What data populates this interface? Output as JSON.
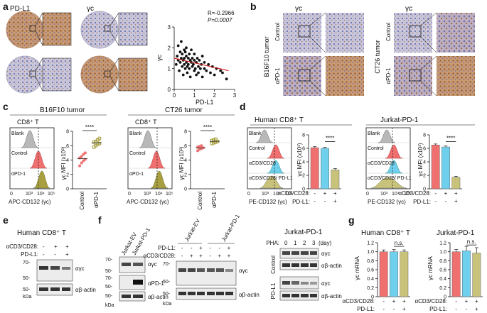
{
  "panels": {
    "a": {
      "letter": "a",
      "col_left": "PD-L1",
      "col_right": "γc",
      "scatter": {
        "stat_r": "R=-0.2966",
        "stat_p": "P=0.0007",
        "xlabel": "PD-L1",
        "ylabel": "γc",
        "xticks": [
          "0",
          "1",
          "2",
          "3"
        ],
        "yticks": [
          "0",
          "1",
          "2",
          "3"
        ]
      }
    },
    "b": {
      "letter": "b",
      "col_title": "γc",
      "group_left": "B16F10 tumor",
      "group_right": "CT26 tumor",
      "rows": [
        "Control",
        "αPD-1"
      ]
    },
    "c": {
      "letter": "c",
      "groups": [
        "B16F10 tumor",
        "CT26 tumor"
      ],
      "cell": "CD8⁺ T",
      "hist_labels": [
        "Blank",
        "Control",
        "αPD-1"
      ],
      "xaxis": "APC-CD132 (γc)",
      "xticks": [
        "0",
        "10²",
        "10³",
        "10⁴",
        "10⁵"
      ],
      "ylabel": "γc MFI (x10³)",
      "sig": "****",
      "cats": [
        "Control",
        "αPD-1"
      ],
      "yticks_left": [
        "0",
        "2",
        "4",
        "6",
        "8"
      ],
      "yticks_right": [
        "0",
        "2",
        "4",
        "6",
        "8"
      ]
    },
    "d": {
      "letter": "d",
      "groups": [
        "Human CD8⁺ T",
        "Jurkat-PD-1"
      ],
      "hist_labels": [
        "Blank",
        "Control",
        "αCD3/CD28",
        "αCD3/CD28/ PD-L1"
      ],
      "xaxis": "PE-CD132 (γc)",
      "xticks": [
        "0",
        "10³",
        "10⁴",
        "10⁵"
      ],
      "ylabel": "γc MFI (x10³)",
      "sig": "****",
      "cond_row1": "αCD3/CD28:",
      "cond_row2": "PD-L1:",
      "row1_vals": [
        "-",
        "+",
        "+"
      ],
      "row2_vals": [
        "-",
        "-",
        "+"
      ],
      "yticks": [
        "0",
        "2",
        "4",
        "6",
        "8"
      ]
    },
    "e": {
      "letter": "e",
      "title": "Human CD8⁺ T",
      "cond_row1": "αCD3/CD28:",
      "cond_row2": "PD-L1:",
      "row1_vals": [
        "-",
        "+",
        "+"
      ],
      "row2_vals": [
        "-",
        "-",
        "+"
      ],
      "bands": [
        "αγc",
        "αβ-actin"
      ],
      "mw": [
        "70-",
        "50-",
        "50-",
        "kDa"
      ]
    },
    "f": {
      "letter": "f",
      "lanes1": [
        "Jurkat-EV",
        "Jurkat-PD-1"
      ],
      "blot1": [
        "αγc",
        "αPD-1",
        "αβ-actin"
      ],
      "mw1": [
        "70-",
        "50-",
        "70-",
        "50-",
        "50-",
        "kDa"
      ],
      "lanes2": [
        "Jurkat-EV",
        "Jurkat-PD-1"
      ],
      "cond_row1": "PD-L1:",
      "cond_row2": "αCD3/CD28:",
      "row1_vals": [
        "-",
        "-",
        "+",
        "-",
        "-",
        "+"
      ],
      "row2_vals": [
        "-",
        "+",
        "+",
        "-",
        "+",
        "+"
      ],
      "blot2": [
        "αγc",
        "αβ-actin"
      ],
      "mw2": [
        "70-",
        "50-",
        "50-",
        "kDa"
      ],
      "title3": "Jurkat-PD-1",
      "pha_label": "PHA:",
      "pha_days": [
        "0",
        "1",
        "2",
        "3"
      ],
      "pha_unit": "(day)",
      "side_rows": [
        "Control",
        "PD-L1"
      ],
      "blot3": [
        "αγc",
        "αβ-actin",
        "αγc",
        "αβ-actin"
      ]
    },
    "g": {
      "letter": "g",
      "groups": [
        "Human CD8⁺ T",
        "Jurkat-PD-1"
      ],
      "ylabel": "γc mRNA",
      "ns": "n.s.",
      "cond_row1": "αCD3/CD28:",
      "cond_row2": "PD-L1:",
      "row1_vals": [
        "-",
        "+",
        "+"
      ],
      "row2_vals": [
        "-",
        "-",
        "+"
      ],
      "yticks": [
        "0",
        "0.2",
        "0.4",
        "0.6",
        "0.8",
        "1.0",
        "1.2"
      ]
    }
  },
  "colors": {
    "control": "#f07070",
    "apd1": "#a8a040",
    "cd3": "#6fd0ee",
    "pdl1": "#c8c27a",
    "blank": "#b8b8b8",
    "ihc_brown": "#a8704a",
    "ihc_blue": "#8f96c4"
  },
  "chart_data": [
    {
      "panel": "a",
      "type": "scatter",
      "xlabel": "PD-L1",
      "ylabel": "γc",
      "xlim": [
        0,
        3
      ],
      "ylim": [
        0,
        3
      ],
      "annotations": [
        "R=-0.2966",
        "P=0.0007"
      ],
      "points": [
        [
          0.1,
          1.2
        ],
        [
          0.15,
          1.6
        ],
        [
          0.2,
          1.4
        ],
        [
          0.2,
          2.1
        ],
        [
          0.25,
          0.9
        ],
        [
          0.3,
          1.8
        ],
        [
          0.3,
          1.3
        ],
        [
          0.35,
          1.5
        ],
        [
          0.35,
          2.3
        ],
        [
          0.4,
          1.1
        ],
        [
          0.4,
          1.7
        ],
        [
          0.45,
          1.4
        ],
        [
          0.45,
          0.7
        ],
        [
          0.5,
          1.9
        ],
        [
          0.5,
          1.2
        ],
        [
          0.5,
          1.5
        ],
        [
          0.55,
          1.0
        ],
        [
          0.55,
          1.8
        ],
        [
          0.6,
          1.3
        ],
        [
          0.6,
          1.6
        ],
        [
          0.6,
          2.0
        ],
        [
          0.65,
          1.1
        ],
        [
          0.65,
          0.8
        ],
        [
          0.7,
          1.5
        ],
        [
          0.7,
          1.2
        ],
        [
          0.75,
          1.7
        ],
        [
          0.75,
          1.0
        ],
        [
          0.8,
          1.4
        ],
        [
          0.8,
          0.6
        ],
        [
          0.85,
          1.3
        ],
        [
          0.85,
          1.9
        ],
        [
          0.9,
          1.1
        ],
        [
          0.9,
          1.5
        ],
        [
          0.95,
          1.2
        ],
        [
          1.0,
          0.9
        ],
        [
          1.0,
          1.4
        ],
        [
          1.0,
          1.7
        ],
        [
          1.05,
          1.0
        ],
        [
          1.1,
          1.3
        ],
        [
          1.1,
          0.7
        ],
        [
          1.15,
          1.5
        ],
        [
          1.2,
          1.1
        ],
        [
          1.2,
          0.8
        ],
        [
          1.25,
          1.4
        ],
        [
          1.3,
          1.0
        ],
        [
          1.35,
          1.2
        ],
        [
          1.4,
          0.6
        ],
        [
          1.4,
          1.6
        ],
        [
          1.5,
          1.0
        ],
        [
          1.5,
          1.3
        ],
        [
          1.6,
          0.9
        ],
        [
          1.7,
          1.2
        ],
        [
          1.8,
          0.8
        ],
        [
          1.9,
          1.1
        ],
        [
          2.0,
          0.7
        ],
        [
          2.1,
          1.0
        ],
        [
          2.3,
          0.9
        ],
        [
          2.4,
          0.8
        ],
        [
          2.6,
          0.5
        ]
      ],
      "fit": [
        [
          0,
          1.5
        ],
        [
          2.7,
          0.9
        ]
      ]
    },
    {
      "panel": "c-B16F10",
      "type": "scatter",
      "ylabel": "γc MFI (x10³)",
      "categories": [
        "Control",
        "αPD-1"
      ],
      "ylim": [
        0,
        8
      ],
      "series": [
        {
          "name": "Control",
          "values": [
            3.2,
            3.6,
            3.9,
            4.1,
            4.3,
            4.5,
            4.8,
            5.0
          ],
          "mean": 4.2
        },
        {
          "name": "αPD-1",
          "values": [
            5.8,
            6.0,
            6.2,
            6.3,
            6.5,
            6.6,
            6.8,
            7.0
          ],
          "mean": 6.4
        }
      ]
    },
    {
      "panel": "c-CT26",
      "type": "scatter",
      "ylabel": "γc MFI (x10³)",
      "categories": [
        "Control",
        "αPD-1"
      ],
      "ylim": [
        0,
        8
      ],
      "series": [
        {
          "name": "Control",
          "values": [
            5.3,
            5.5,
            5.6,
            5.7,
            5.8,
            5.9,
            6.0
          ],
          "mean": 5.7
        },
        {
          "name": "αPD-1",
          "values": [
            6.3,
            6.4,
            6.5,
            6.6,
            6.7,
            6.8,
            6.9
          ],
          "mean": 6.6
        }
      ]
    },
    {
      "panel": "d-Human",
      "type": "bar",
      "ylabel": "γc MFI (x10³)",
      "categories": [
        "-/-",
        "+/-",
        "+/+"
      ],
      "ylim": [
        0,
        8
      ],
      "values": [
        6.1,
        6.0,
        2.8
      ],
      "errors": [
        0.15,
        0.15,
        0.2
      ]
    },
    {
      "panel": "d-Jurkat",
      "type": "bar",
      "ylabel": "γc MFI (x10³)",
      "categories": [
        "-/-",
        "+/-",
        "+/+"
      ],
      "ylim": [
        0,
        8
      ],
      "values": [
        6.5,
        6.2,
        1.7
      ],
      "errors": [
        0.15,
        0.15,
        0.15
      ]
    },
    {
      "panel": "g-Human",
      "type": "bar",
      "ylabel": "γc mRNA",
      "categories": [
        "-/-",
        "+/-",
        "+/+"
      ],
      "ylim": [
        0,
        1.2
      ],
      "values": [
        1.0,
        1.0,
        1.0
      ],
      "errors": [
        0.04,
        0.05,
        0.04
      ]
    },
    {
      "panel": "g-Jurkat",
      "type": "bar",
      "ylabel": "γc mRNA",
      "categories": [
        "-/-",
        "+/-",
        "+/+"
      ],
      "ylim": [
        0,
        1.2
      ],
      "values": [
        1.0,
        1.02,
        0.97
      ],
      "errors": [
        0.05,
        0.1,
        0.12
      ]
    }
  ]
}
